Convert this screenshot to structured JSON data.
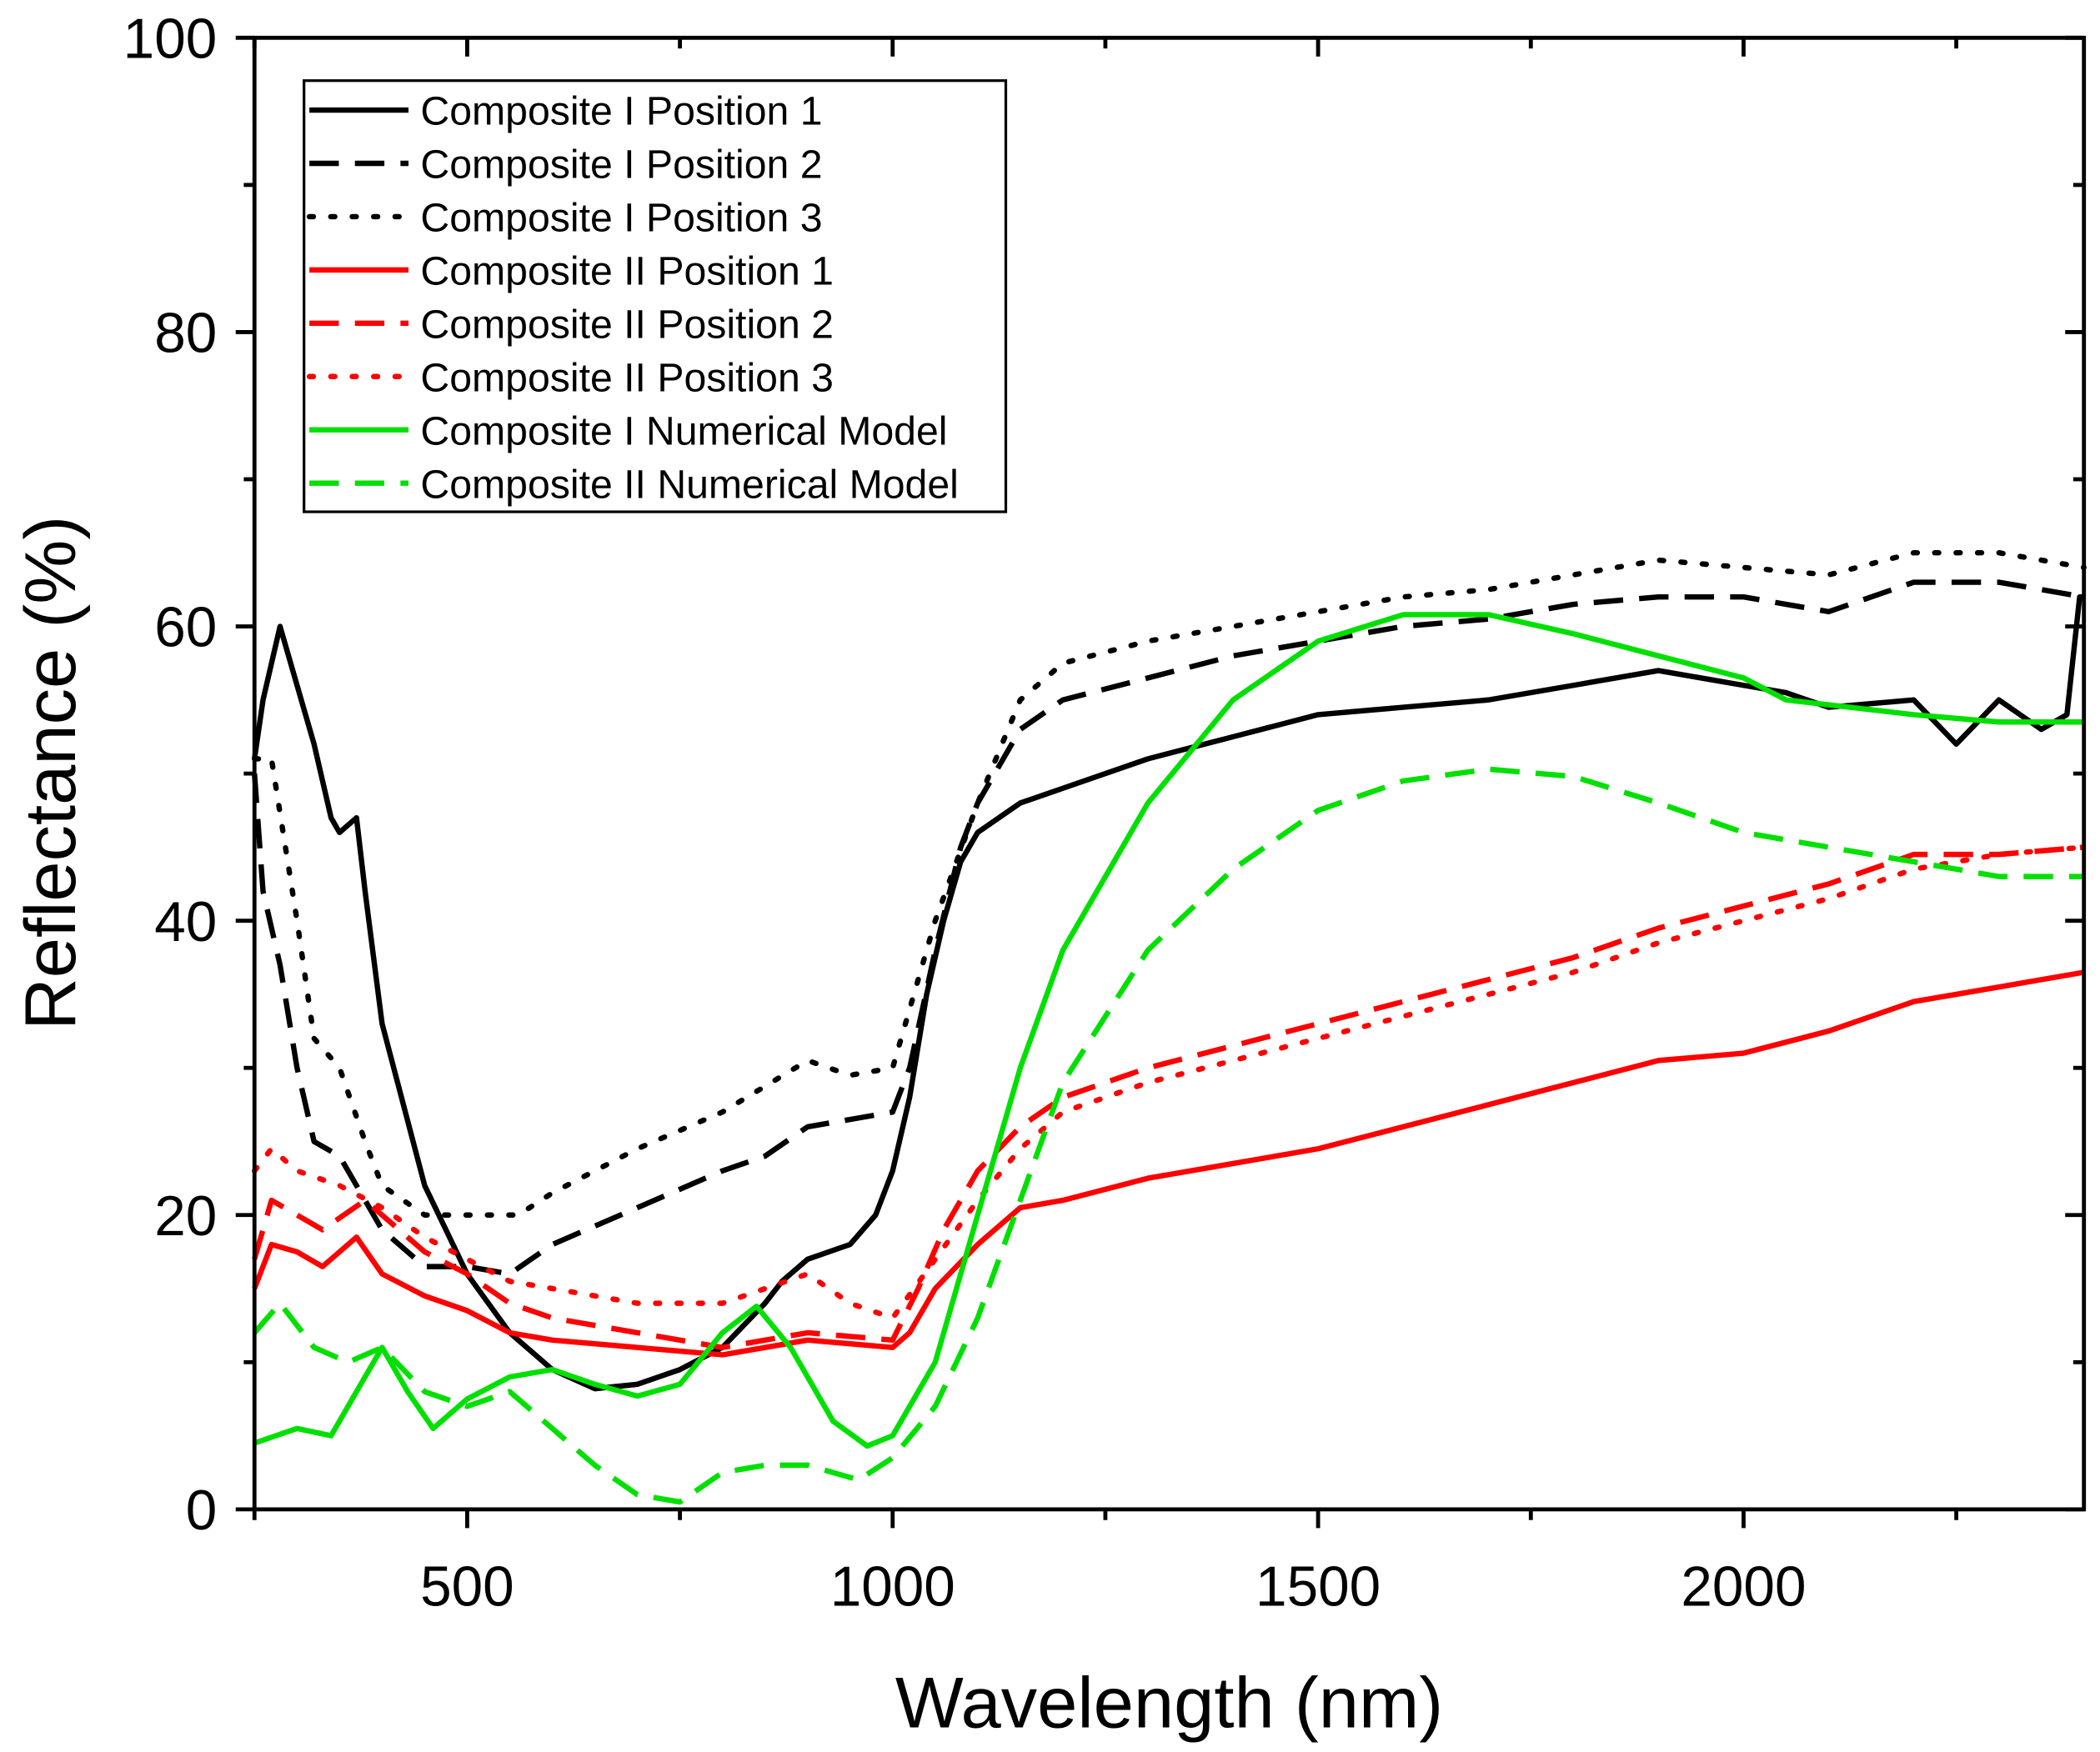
{
  "chart_data": {
    "type": "line",
    "title": "",
    "xlabel": "Wavelength (nm)",
    "ylabel": "Reflectance (%)",
    "xlim": [
      250,
      2400
    ],
    "ylim": [
      0,
      100
    ],
    "xticks": [
      500,
      1000,
      1500,
      2000
    ],
    "yticks": [
      0,
      20,
      40,
      60,
      80,
      100
    ],
    "grid": false,
    "legend_position": "top-left",
    "series": [
      {
        "name": "Composite I Position 1",
        "color": "#000000",
        "dash": "solid",
        "x": [
          250,
          260,
          280,
          300,
          320,
          340,
          350,
          370,
          380,
          400,
          450,
          500,
          550,
          600,
          650,
          700,
          750,
          800,
          850,
          870,
          900,
          950,
          980,
          1000,
          1020,
          1040,
          1060,
          1080,
          1100,
          1150,
          1200,
          1300,
          1400,
          1500,
          1600,
          1700,
          1800,
          1900,
          2000,
          2050,
          2100,
          2200,
          2250,
          2300,
          2350,
          2380,
          2395,
          2400
        ],
        "y": [
          51,
          55,
          60,
          56,
          52,
          47,
          46,
          47,
          42,
          33,
          22,
          16,
          12,
          9.5,
          8.2,
          8.5,
          9.5,
          11,
          14,
          15.5,
          17,
          18,
          20,
          23,
          28,
          35,
          40,
          44,
          46,
          48,
          49,
          51,
          52.5,
          54,
          54.5,
          55,
          56,
          57,
          56,
          55.5,
          54.5,
          55,
          52,
          55,
          53,
          54,
          62,
          62
        ]
      },
      {
        "name": "Composite I Position 2",
        "color": "#000000",
        "dash": "dashed",
        "x": [
          250,
          260,
          280,
          300,
          320,
          350,
          400,
          450,
          500,
          550,
          600,
          700,
          800,
          850,
          900,
          1000,
          1020,
          1050,
          1080,
          1100,
          1150,
          1200,
          1300,
          1400,
          1500,
          1600,
          1700,
          1800,
          1900,
          2000,
          2100,
          2200,
          2300,
          2400
        ],
        "y": [
          50,
          42,
          37,
          30,
          25,
          24,
          19,
          16.5,
          16.5,
          16,
          18,
          20.5,
          23,
          24,
          26,
          27,
          30,
          38,
          45,
          48,
          53,
          55,
          56.5,
          58,
          59,
          60,
          60.5,
          61.5,
          62,
          62,
          61,
          63,
          63,
          62
        ]
      },
      {
        "name": "Composite I Position 3",
        "color": "#000000",
        "dash": "dotted",
        "x": [
          250,
          270,
          300,
          320,
          350,
          380,
          400,
          450,
          500,
          560,
          600,
          700,
          800,
          900,
          950,
          1000,
          1050,
          1100,
          1150,
          1200,
          1300,
          1400,
          1500,
          1600,
          1700,
          1800,
          1900,
          2000,
          2100,
          2200,
          2300,
          2400
        ],
        "y": [
          51,
          51,
          40,
          32,
          30,
          25,
          22,
          20,
          20,
          20,
          21.5,
          24.5,
          27,
          30.5,
          29.5,
          30,
          40,
          48,
          55,
          57.5,
          59,
          60,
          61,
          62,
          62.5,
          63.5,
          64.5,
          64,
          63.5,
          65,
          65,
          64
        ]
      },
      {
        "name": "Composite II Position 1",
        "color": "#ff0000",
        "dash": "solid",
        "x": [
          250,
          270,
          300,
          330,
          370,
          400,
          450,
          500,
          550,
          600,
          700,
          800,
          850,
          900,
          1000,
          1020,
          1050,
          1100,
          1150,
          1200,
          1300,
          1400,
          1500,
          1600,
          1700,
          1800,
          1900,
          2000,
          2100,
          2200,
          2300,
          2400
        ],
        "y": [
          15,
          18,
          17.5,
          16.5,
          18.5,
          16,
          14.5,
          13.5,
          12,
          11.5,
          11,
          10.5,
          11,
          11.5,
          11,
          12,
          15,
          18,
          20.5,
          21,
          22.5,
          23.5,
          24.5,
          26,
          27.5,
          29,
          30.5,
          31,
          32.5,
          34.5,
          35.5,
          36.5
        ]
      },
      {
        "name": "Composite II Position 2",
        "color": "#ff0000",
        "dash": "dashed",
        "x": [
          250,
          270,
          300,
          330,
          380,
          400,
          450,
          500,
          550,
          600,
          700,
          800,
          900,
          1000,
          1030,
          1060,
          1100,
          1150,
          1200,
          1300,
          1400,
          1500,
          1600,
          1700,
          1800,
          1900,
          2000,
          2100,
          2200,
          2300,
          2400
        ],
        "y": [
          17,
          21,
          20,
          19,
          21,
          20,
          17.5,
          16,
          14,
          13,
          12,
          11,
          12,
          11.5,
          15,
          19,
          23,
          26,
          28,
          30,
          31.5,
          33,
          34.5,
          36,
          37.5,
          39.5,
          41,
          42.5,
          44.5,
          44.5,
          45
        ]
      },
      {
        "name": "Composite II Position 3",
        "color": "#ff0000",
        "dash": "dotted",
        "x": [
          250,
          270,
          300,
          350,
          400,
          450,
          500,
          550,
          600,
          700,
          800,
          900,
          950,
          1000,
          1050,
          1100,
          1150,
          1200,
          1300,
          1400,
          1500,
          1600,
          1700,
          1800,
          1900,
          2000,
          2100,
          2200,
          2300,
          2400
        ],
        "y": [
          23,
          24.5,
          23,
          22,
          20.5,
          18.5,
          17,
          15.5,
          15,
          14,
          14,
          16,
          14,
          13,
          17,
          21,
          24.5,
          27,
          29,
          30.5,
          32,
          33.5,
          35,
          36.5,
          38.5,
          40,
          41.5,
          43.5,
          44.5,
          45
        ]
      },
      {
        "name": "Composite I Numerical Model",
        "color": "#00e000",
        "dash": "solid",
        "x": [
          250,
          300,
          340,
          370,
          400,
          430,
          460,
          500,
          550,
          600,
          650,
          700,
          750,
          800,
          840,
          880,
          930,
          970,
          1000,
          1050,
          1100,
          1150,
          1200,
          1300,
          1400,
          1500,
          1600,
          1700,
          1800,
          1900,
          2000,
          2050,
          2200,
          2300,
          2400
        ],
        "y": [
          4.5,
          5.5,
          5,
          8,
          11,
          8,
          5.5,
          7.5,
          9,
          9.5,
          8.5,
          7.7,
          8.5,
          12,
          13.8,
          11,
          6,
          4.3,
          5,
          10,
          20,
          30,
          38,
          48,
          55,
          59,
          60.8,
          60.8,
          59.5,
          58,
          56.5,
          55,
          54,
          53.5,
          53.5
        ]
      },
      {
        "name": "Composite II Numerical Model",
        "color": "#00e000",
        "dash": "dashed",
        "x": [
          250,
          280,
          320,
          360,
          400,
          450,
          500,
          550,
          600,
          650,
          700,
          750,
          800,
          850,
          900,
          960,
          1000,
          1050,
          1100,
          1150,
          1200,
          1300,
          1400,
          1500,
          1600,
          1700,
          1800,
          1900,
          2000,
          2050,
          2200,
          2300,
          2400
        ],
        "y": [
          12,
          14,
          11,
          10,
          11,
          8,
          7,
          8,
          5.5,
          3,
          1,
          0.5,
          2.5,
          3,
          3,
          2,
          3.5,
          7,
          13,
          21,
          29,
          38,
          43.5,
          47.5,
          49.5,
          50.3,
          49.8,
          48,
          46,
          45.5,
          44,
          43,
          43
        ]
      }
    ]
  }
}
